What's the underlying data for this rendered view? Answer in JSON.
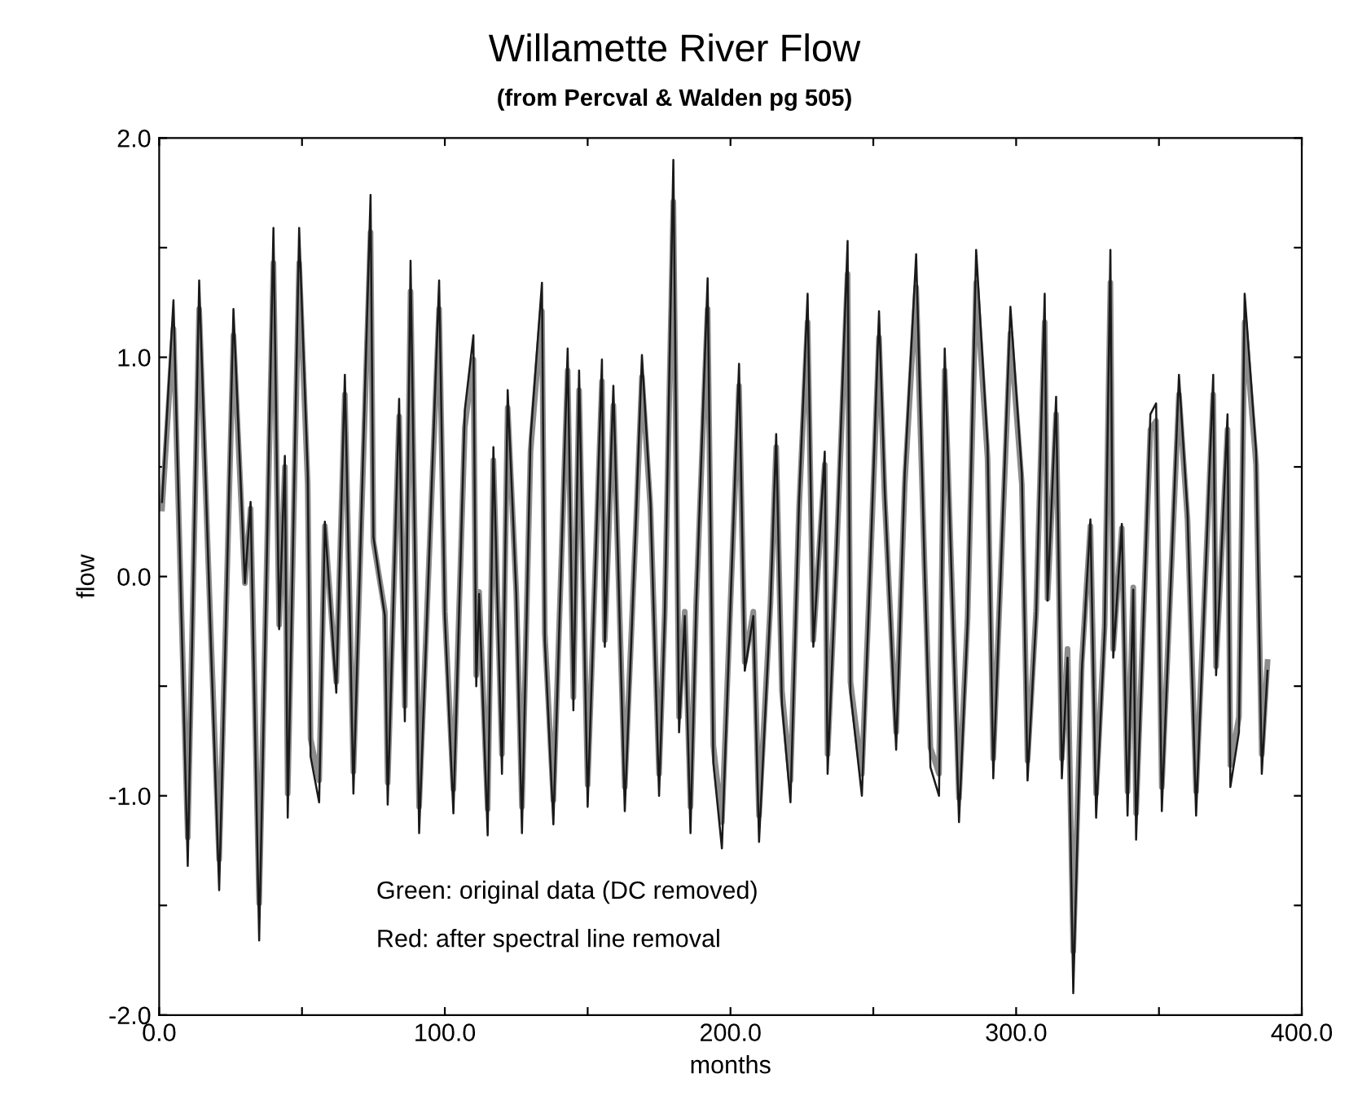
{
  "chart_data": {
    "type": "line",
    "title": "Willamette River Flow",
    "subtitle": "(from Percval & Walden pg 505)",
    "xlabel": "months",
    "ylabel": "flow",
    "annotations": [
      "Green: original data (DC removed)",
      "Red: after spectral line removal"
    ],
    "xlim": [
      0,
      400
    ],
    "xticks": [
      {
        "value": 0,
        "label": "0.0"
      },
      {
        "value": 50,
        "label": null
      },
      {
        "value": 100,
        "label": "100.0"
      },
      {
        "value": 150,
        "label": null
      },
      {
        "value": 200,
        "label": "200.0"
      },
      {
        "value": 250,
        "label": null
      },
      {
        "value": 300,
        "label": "300.0"
      },
      {
        "value": 350,
        "label": null
      },
      {
        "value": 400,
        "label": "400.0"
      }
    ],
    "ylim": [
      -2,
      2
    ],
    "yticks": [
      {
        "value": -2,
        "label": "-2.0"
      },
      {
        "value": -1.5,
        "label": null
      },
      {
        "value": -1,
        "label": "-1.0"
      },
      {
        "value": -0.5,
        "label": null
      },
      {
        "value": 0,
        "label": "0.0"
      },
      {
        "value": 0.5,
        "label": null
      },
      {
        "value": 1,
        "label": "1.0"
      },
      {
        "value": 1.5,
        "label": null
      },
      {
        "value": 2,
        "label": "2.0"
      }
    ],
    "grid": false,
    "legend": false,
    "x": [
      1,
      5,
      10,
      14,
      18,
      21,
      23,
      26,
      30,
      32,
      35,
      40,
      42,
      44,
      45,
      49,
      52,
      53,
      56,
      58,
      62,
      65,
      68,
      74,
      75,
      79,
      80,
      84,
      86,
      88,
      91,
      98,
      100,
      103,
      107,
      110,
      111,
      112,
      115,
      117,
      120,
      122,
      125,
      127,
      130,
      134,
      135,
      138,
      143,
      145,
      147,
      150,
      155,
      156,
      159,
      163,
      167,
      169,
      172,
      175,
      177,
      180,
      182,
      184,
      186,
      188,
      192,
      194,
      197,
      200,
      203,
      205,
      208,
      210,
      214,
      216,
      218,
      221,
      224,
      227,
      229,
      233,
      234,
      237,
      241,
      242,
      246,
      249,
      252,
      254,
      258,
      261,
      265,
      268,
      270,
      273,
      275,
      280,
      283,
      286,
      290,
      292,
      298,
      302,
      304,
      307,
      310,
      311,
      314,
      316,
      318,
      320,
      323,
      326,
      328,
      331,
      333,
      334,
      337,
      339,
      341,
      342,
      347,
      349,
      351,
      357,
      360,
      363,
      369,
      370,
      374,
      375,
      378,
      380,
      384,
      386,
      388
    ],
    "series": [
      {
        "color": "#8c8c8c",
        "values": [
          0.31,
          1.13,
          -1.19,
          1.22,
          -0.23,
          -1.29,
          -0.36,
          1.1,
          -0.03,
          0.31,
          -1.49,
          1.43,
          -0.22,
          0.5,
          -0.99,
          1.43,
          0.42,
          -0.74,
          -0.93,
          0.23,
          -0.48,
          0.83,
          -0.89,
          1.57,
          0.16,
          -0.16,
          -0.94,
          0.73,
          -0.59,
          1.3,
          -1.05,
          1.22,
          -0.16,
          -0.97,
          0.68,
          0.99,
          -0.45,
          -0.07,
          -1.06,
          0.53,
          -0.81,
          0.77,
          -0.07,
          -1.05,
          0.57,
          1.21,
          -0.26,
          -1.02,
          0.94,
          -0.55,
          0.85,
          -0.95,
          0.89,
          -0.29,
          0.78,
          -0.96,
          0.26,
          0.91,
          0.31,
          -0.9,
          -0.16,
          1.71,
          -0.64,
          -0.16,
          -1.05,
          -0.12,
          1.22,
          -0.77,
          -1.12,
          -0.12,
          0.87,
          -0.39,
          -0.16,
          -1.09,
          -0.12,
          0.59,
          -0.52,
          -0.93,
          0.31,
          1.16,
          -0.29,
          0.51,
          -0.81,
          0.06,
          1.38,
          -0.48,
          -0.9,
          0.06,
          1.09,
          0.35,
          -0.71,
          0.42,
          1.32,
          0.02,
          -0.78,
          -0.9,
          0.94,
          -1.01,
          -0.19,
          1.34,
          0.54,
          -0.83,
          1.11,
          0.42,
          -0.84,
          -0.16,
          1.16,
          -0.1,
          0.74,
          -0.83,
          -0.33,
          -1.71,
          -0.39,
          0.23,
          -0.99,
          -0.22,
          1.34,
          -0.33,
          0.22,
          -0.98,
          -0.05,
          -1.08,
          0.67,
          0.71,
          -0.96,
          0.83,
          0.26,
          -0.98,
          0.83,
          -0.41,
          0.67,
          -0.86,
          -0.64,
          1.16,
          0.51,
          -0.81,
          -0.39
        ]
      },
      {
        "color": "#1a1a1a",
        "values": [
          0.34,
          1.26,
          -1.32,
          1.35,
          -0.26,
          -1.43,
          -0.4,
          1.22,
          -0.03,
          0.34,
          -1.66,
          1.59,
          -0.24,
          0.55,
          -1.1,
          1.59,
          0.47,
          -0.82,
          -1.03,
          0.25,
          -0.53,
          0.92,
          -0.99,
          1.74,
          0.18,
          -0.18,
          -1.04,
          0.81,
          -0.66,
          1.44,
          -1.17,
          1.35,
          -0.18,
          -1.08,
          0.76,
          1.1,
          -0.5,
          -0.08,
          -1.18,
          0.59,
          -0.9,
          0.85,
          -0.08,
          -1.17,
          0.63,
          1.34,
          -0.29,
          -1.13,
          1.04,
          -0.61,
          0.94,
          -1.05,
          0.99,
          -0.32,
          0.87,
          -1.07,
          0.29,
          1.01,
          0.34,
          -1.0,
          -0.18,
          1.9,
          -0.71,
          -0.18,
          -1.17,
          -0.13,
          1.36,
          -0.85,
          -1.24,
          -0.13,
          0.97,
          -0.43,
          -0.18,
          -1.21,
          -0.13,
          0.65,
          -0.58,
          -1.03,
          0.34,
          1.29,
          -0.32,
          0.57,
          -0.9,
          0.07,
          1.53,
          -0.53,
          -1.0,
          0.07,
          1.21,
          0.39,
          -0.79,
          0.47,
          1.47,
          0.02,
          -0.87,
          -1.0,
          1.04,
          -1.12,
          -0.21,
          1.49,
          0.6,
          -0.92,
          1.23,
          0.47,
          -0.93,
          -0.18,
          1.29,
          -0.11,
          0.82,
          -0.92,
          -0.37,
          -1.9,
          -0.43,
          0.26,
          -1.1,
          -0.24,
          1.49,
          -0.37,
          0.24,
          -1.09,
          -0.06,
          -1.2,
          0.74,
          0.79,
          -1.07,
          0.92,
          0.29,
          -1.09,
          0.92,
          -0.45,
          0.74,
          -0.96,
          -0.71,
          1.29,
          0.57,
          -0.9,
          -0.43
        ]
      }
    ]
  }
}
